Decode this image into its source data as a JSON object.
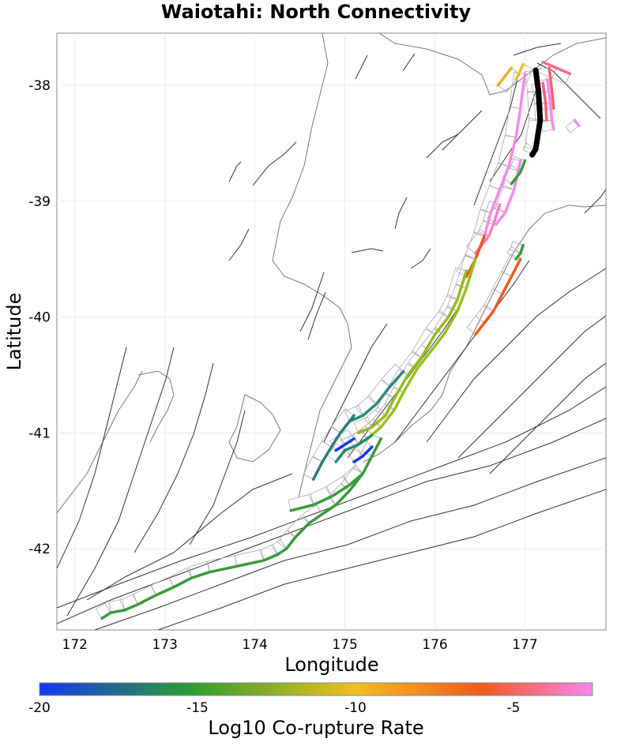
{
  "title": "Waiotahi: North Connectivity",
  "x_axis": {
    "label": "Longitude",
    "ticks": [
      "172",
      "173",
      "174",
      "175",
      "176",
      "177"
    ],
    "range": [
      171.8,
      177.9
    ]
  },
  "y_axis": {
    "label": "Latitude",
    "ticks": [
      "-38",
      "-39",
      "-40",
      "-41",
      "-42"
    ],
    "range": [
      -42.7,
      -37.55
    ]
  },
  "colorbar": {
    "label": "Log10 Co-rupture Rate",
    "ticks": [
      "-20",
      "-15",
      "-10",
      "-5"
    ],
    "range": [
      -20,
      -2.5
    ],
    "colors": [
      "#1437f0",
      "#2f9e2f",
      "#f0c020",
      "#f05a20",
      "#f887f0"
    ]
  },
  "grid": true,
  "map_style": {
    "coastline_color": "#777777",
    "fault_trace_color": "#333333",
    "fault_plane_color": "#aaaaaa",
    "source_fault_color": "#000000"
  },
  "highlighted_faults": [
    {
      "id": "source",
      "log10_rate": null,
      "color": "#000000",
      "coords": [
        [
          177.12,
          -37.87
        ],
        [
          177.15,
          -38.05
        ],
        [
          177.17,
          -38.3
        ],
        [
          177.12,
          -38.55
        ],
        [
          177.08,
          -38.6
        ]
      ]
    },
    {
      "id": "pink-1",
      "log10_rate": -3,
      "color": "#f887f0",
      "coords": [
        [
          177.0,
          -37.9
        ],
        [
          176.95,
          -38.2
        ],
        [
          176.9,
          -38.45
        ],
        [
          176.82,
          -38.7
        ],
        [
          176.72,
          -38.9
        ],
        [
          176.62,
          -39.1
        ],
        [
          176.55,
          -39.3
        ]
      ]
    },
    {
      "id": "pink-2",
      "log10_rate": -3,
      "color": "#f887f0",
      "coords": [
        [
          176.95,
          -38.65
        ],
        [
          176.88,
          -38.9
        ],
        [
          176.78,
          -39.1
        ],
        [
          176.68,
          -39.2
        ]
      ]
    },
    {
      "id": "pink-3",
      "log10_rate": -3.5,
      "color": "#f77fc6",
      "coords": [
        [
          176.72,
          -39.03
        ],
        [
          176.65,
          -39.2
        ],
        [
          176.6,
          -39.3
        ],
        [
          176.45,
          -39.45
        ]
      ]
    },
    {
      "id": "pink-4",
      "log10_rate": -3,
      "color": "#f887f0",
      "coords": [
        [
          177.25,
          -37.95
        ],
        [
          177.28,
          -38.15
        ],
        [
          177.3,
          -38.3
        ],
        [
          177.32,
          -38.38
        ]
      ]
    },
    {
      "id": "pink-5",
      "log10_rate": -4,
      "color": "#f86a8a",
      "coords": [
        [
          177.2,
          -37.8
        ],
        [
          177.35,
          -37.85
        ],
        [
          177.5,
          -37.9
        ]
      ]
    },
    {
      "id": "pink-6",
      "log10_rate": -3,
      "color": "#f887f0",
      "coords": [
        [
          177.55,
          -38.3
        ],
        [
          177.6,
          -38.35
        ]
      ]
    },
    {
      "id": "red-1",
      "log10_rate": -4.5,
      "color": "#f8607a",
      "coords": [
        [
          177.2,
          -37.98
        ],
        [
          177.23,
          -38.15
        ],
        [
          177.24,
          -38.3
        ]
      ]
    },
    {
      "id": "red-2",
      "log10_rate": -4.5,
      "color": "#f86070",
      "coords": [
        [
          177.27,
          -37.85
        ],
        [
          177.3,
          -38.05
        ],
        [
          177.32,
          -38.2
        ]
      ]
    },
    {
      "id": "orange-1",
      "log10_rate": -10,
      "color": "#f0b020",
      "coords": [
        [
          176.7,
          -38.0
        ],
        [
          176.85,
          -37.85
        ]
      ]
    },
    {
      "id": "orange-2",
      "log10_rate": -10,
      "color": "#f0c020",
      "coords": [
        [
          176.9,
          -37.95
        ],
        [
          176.98,
          -37.82
        ]
      ]
    },
    {
      "id": "orange-3",
      "log10_rate": -6,
      "color": "#f05a20",
      "coords": [
        [
          176.55,
          -39.3
        ],
        [
          176.45,
          -39.5
        ],
        [
          176.35,
          -39.65
        ]
      ]
    },
    {
      "id": "orange-4",
      "log10_rate": -6,
      "color": "#f05a20",
      "coords": [
        [
          176.95,
          -39.5
        ],
        [
          176.85,
          -39.65
        ],
        [
          176.75,
          -39.8
        ],
        [
          176.65,
          -39.95
        ],
        [
          176.55,
          -40.05
        ],
        [
          176.45,
          -40.15
        ]
      ]
    },
    {
      "id": "green-1",
      "log10_rate": -15,
      "color": "#3a9a3a",
      "coords": [
        [
          177.0,
          -38.65
        ],
        [
          176.95,
          -38.75
        ],
        [
          176.85,
          -38.85
        ]
      ]
    },
    {
      "id": "green-2",
      "log10_rate": -15,
      "color": "#3a9a3a",
      "coords": [
        [
          176.98,
          -39.38
        ],
        [
          176.95,
          -39.45
        ],
        [
          176.9,
          -39.5
        ]
      ]
    },
    {
      "id": "green-3",
      "log10_rate": -15.5,
      "color": "#3a9a3a",
      "coords": [
        [
          175.2,
          -41.35
        ],
        [
          175.05,
          -41.5
        ],
        [
          174.9,
          -41.62
        ],
        [
          174.75,
          -41.7
        ],
        [
          174.6,
          -41.78
        ],
        [
          174.45,
          -41.9
        ],
        [
          174.35,
          -42.0
        ],
        [
          174.25,
          -42.05
        ],
        [
          174.1,
          -42.1
        ],
        [
          173.8,
          -42.15
        ],
        [
          173.5,
          -42.2
        ],
        [
          173.3,
          -42.25
        ],
        [
          173.1,
          -42.33
        ],
        [
          172.9,
          -42.4
        ],
        [
          172.7,
          -42.48
        ],
        [
          172.55,
          -42.53
        ],
        [
          172.4,
          -42.55
        ],
        [
          172.3,
          -42.6
        ]
      ]
    },
    {
      "id": "green-4",
      "log10_rate": -15.5,
      "color": "#3a9a3a",
      "coords": [
        [
          175.4,
          -41.05
        ],
        [
          175.3,
          -41.2
        ],
        [
          175.2,
          -41.35
        ],
        [
          175.05,
          -41.45
        ],
        [
          174.85,
          -41.55
        ],
        [
          174.65,
          -41.62
        ],
        [
          174.4,
          -41.67
        ]
      ]
    },
    {
      "id": "lime-1",
      "log10_rate": -12,
      "color": "#98c020",
      "coords": [
        [
          176.45,
          -39.5
        ],
        [
          176.35,
          -39.75
        ],
        [
          176.25,
          -39.95
        ],
        [
          176.1,
          -40.15
        ],
        [
          175.95,
          -40.3
        ],
        [
          175.8,
          -40.45
        ],
        [
          175.65,
          -40.65
        ],
        [
          175.55,
          -40.8
        ],
        [
          175.4,
          -40.95
        ],
        [
          175.25,
          -41.05
        ],
        [
          175.1,
          -41.12
        ]
      ]
    },
    {
      "id": "lime-2",
      "log10_rate": -12.5,
      "color": "#9ab820",
      "coords": [
        [
          176.35,
          -39.6
        ],
        [
          176.25,
          -39.85
        ],
        [
          176.15,
          -40.0
        ],
        [
          176.0,
          -40.15
        ],
        [
          175.85,
          -40.35
        ],
        [
          175.7,
          -40.5
        ],
        [
          175.55,
          -40.7
        ],
        [
          175.45,
          -40.85
        ],
        [
          175.3,
          -40.95
        ],
        [
          175.15,
          -41.0
        ]
      ]
    },
    {
      "id": "teal-1",
      "log10_rate": -16.5,
      "color": "#2a8a78",
      "coords": [
        [
          175.65,
          -40.47
        ],
        [
          175.5,
          -40.6
        ],
        [
          175.35,
          -40.75
        ],
        [
          175.2,
          -40.85
        ],
        [
          175.05,
          -40.9
        ]
      ]
    },
    {
      "id": "teal-2",
      "log10_rate": -17,
      "color": "#258072",
      "coords": [
        [
          175.1,
          -40.85
        ],
        [
          174.95,
          -41.0
        ],
        [
          174.85,
          -41.12
        ],
        [
          174.75,
          -41.25
        ],
        [
          174.65,
          -41.4
        ]
      ]
    },
    {
      "id": "teal-3",
      "log10_rate": -17,
      "color": "#228878",
      "coords": [
        [
          175.3,
          -41.02
        ],
        [
          175.15,
          -41.1
        ],
        [
          175.0,
          -41.15
        ],
        [
          174.9,
          -41.25
        ]
      ]
    },
    {
      "id": "blue-1",
      "log10_rate": -19,
      "color": "#1437f0",
      "coords": [
        [
          175.1,
          -41.05
        ],
        [
          175.0,
          -41.1
        ],
        [
          174.9,
          -41.15
        ]
      ]
    },
    {
      "id": "blue-2",
      "log10_rate": -19,
      "color": "#1437f0",
      "coords": [
        [
          175.3,
          -41.12
        ],
        [
          175.2,
          -41.2
        ],
        [
          175.1,
          -41.25
        ]
      ]
    }
  ]
}
